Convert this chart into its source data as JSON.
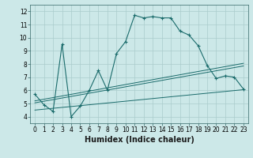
{
  "title": "",
  "xlabel": "Humidex (Indice chaleur)",
  "ylabel": "",
  "x_ticks": [
    0,
    1,
    2,
    3,
    4,
    5,
    6,
    7,
    8,
    9,
    10,
    11,
    12,
    13,
    14,
    15,
    16,
    17,
    18,
    19,
    20,
    21,
    22,
    23
  ],
  "y_ticks": [
    4,
    5,
    6,
    7,
    8,
    9,
    10,
    11,
    12
  ],
  "xlim": [
    -0.5,
    23.5
  ],
  "ylim": [
    3.5,
    12.5
  ],
  "background_color": "#cce8e8",
  "grid_color": "#aacccc",
  "line_color": "#1a6b6b",
  "main_x": [
    0,
    1,
    2,
    3,
    4,
    5,
    6,
    7,
    8,
    9,
    10,
    11,
    12,
    13,
    14,
    15,
    16,
    17,
    18,
    19,
    20,
    21,
    22,
    23
  ],
  "main_y": [
    5.7,
    4.9,
    4.4,
    9.5,
    4.0,
    4.8,
    6.0,
    7.5,
    6.0,
    8.8,
    9.7,
    11.7,
    11.5,
    11.6,
    11.5,
    11.5,
    10.5,
    10.2,
    9.4,
    7.9,
    6.9,
    7.1,
    7.0,
    6.1
  ],
  "line2_x": [
    0,
    23
  ],
  "line2_y": [
    5.05,
    7.85
  ],
  "line3_x": [
    0,
    23
  ],
  "line3_y": [
    5.2,
    8.05
  ],
  "line4_x": [
    0,
    23
  ],
  "line4_y": [
    4.5,
    6.05
  ],
  "tick_fontsize": 5.5,
  "xlabel_fontsize": 7.0
}
